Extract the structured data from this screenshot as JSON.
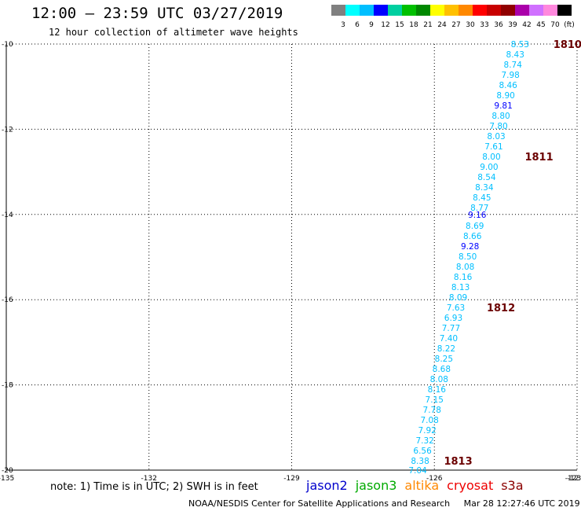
{
  "header": {
    "title": "12:00 – 23:59 UTC 03/27/2019",
    "subtitle": "12 hour collection of altimeter wave heights"
  },
  "colorbar": {
    "colors": [
      "#808080",
      "#00ffff",
      "#00bfff",
      "#0000ff",
      "#00cfa0",
      "#00c000",
      "#008800",
      "#ffff00",
      "#ffc000",
      "#ff8800",
      "#ff0000",
      "#c80000",
      "#900000",
      "#aa00aa",
      "#d070ff",
      "#ff88dd",
      "#000000"
    ],
    "labels": [
      "3",
      "6",
      "9",
      "12",
      "15",
      "18",
      "21",
      "24",
      "27",
      "30",
      "33",
      "36",
      "39",
      "42",
      "45",
      "70",
      "(ft)"
    ]
  },
  "chart_data": {
    "type": "scatter",
    "xlim": [
      -135,
      -123
    ],
    "ylim": [
      -20,
      -10
    ],
    "x_ticks": [
      "-135",
      "-132",
      "-129",
      "-126",
      "-123",
      "-12"
    ],
    "y_ticks": [
      "-10",
      "-12",
      "-14",
      "-16",
      "-18",
      "-20"
    ],
    "grid": true,
    "points": [
      {
        "lon": -124.2,
        "lat": -10.0,
        "v": "8.53",
        "c": "#00bfff"
      },
      {
        "lon": -124.3,
        "lat": -10.24,
        "v": "8.43",
        "c": "#00bfff"
      },
      {
        "lon": -124.35,
        "lat": -10.48,
        "v": "8.74",
        "c": "#00bfff"
      },
      {
        "lon": -124.4,
        "lat": -10.72,
        "v": "7.98",
        "c": "#00bfff"
      },
      {
        "lon": -124.45,
        "lat": -10.96,
        "v": "8.46",
        "c": "#00bfff"
      },
      {
        "lon": -124.5,
        "lat": -11.2,
        "v": "8.90",
        "c": "#00bfff"
      },
      {
        "lon": -124.55,
        "lat": -11.44,
        "v": "9.81",
        "c": "#0000ff"
      },
      {
        "lon": -124.6,
        "lat": -11.68,
        "v": "8.80",
        "c": "#00bfff"
      },
      {
        "lon": -124.65,
        "lat": -11.92,
        "v": "7.80",
        "c": "#00bfff"
      },
      {
        "lon": -124.7,
        "lat": -12.16,
        "v": "8.03",
        "c": "#00bfff"
      },
      {
        "lon": -124.75,
        "lat": -12.4,
        "v": "7.61",
        "c": "#00bfff"
      },
      {
        "lon": -124.8,
        "lat": -12.64,
        "v": "8.00",
        "c": "#00bfff"
      },
      {
        "lon": -124.85,
        "lat": -12.88,
        "v": "9.00",
        "c": "#00bfff"
      },
      {
        "lon": -124.9,
        "lat": -13.12,
        "v": "8.54",
        "c": "#00bfff"
      },
      {
        "lon": -124.95,
        "lat": -13.36,
        "v": "8.34",
        "c": "#00bfff"
      },
      {
        "lon": -125.0,
        "lat": -13.6,
        "v": "8.45",
        "c": "#00bfff"
      },
      {
        "lon": -125.05,
        "lat": -13.84,
        "v": "8.77",
        "c": "#00bfff"
      },
      {
        "lon": -125.1,
        "lat": -14.0,
        "v": "9.16",
        "c": "#0000ff"
      },
      {
        "lon": -125.15,
        "lat": -14.26,
        "v": "8.69",
        "c": "#00bfff"
      },
      {
        "lon": -125.2,
        "lat": -14.5,
        "v": "8.66",
        "c": "#00bfff"
      },
      {
        "lon": -125.25,
        "lat": -14.74,
        "v": "9.28",
        "c": "#0000ff"
      },
      {
        "lon": -125.3,
        "lat": -14.98,
        "v": "8.50",
        "c": "#00bfff"
      },
      {
        "lon": -125.35,
        "lat": -15.22,
        "v": "8.08",
        "c": "#00bfff"
      },
      {
        "lon": -125.4,
        "lat": -15.46,
        "v": "8.16",
        "c": "#00bfff"
      },
      {
        "lon": -125.45,
        "lat": -15.7,
        "v": "8.13",
        "c": "#00bfff"
      },
      {
        "lon": -125.5,
        "lat": -15.94,
        "v": "8.09",
        "c": "#00bfff"
      },
      {
        "lon": -125.55,
        "lat": -16.18,
        "v": "7.63",
        "c": "#00bfff"
      },
      {
        "lon": -125.6,
        "lat": -16.42,
        "v": "6.93",
        "c": "#00bfff"
      },
      {
        "lon": -125.65,
        "lat": -16.66,
        "v": "7.77",
        "c": "#00bfff"
      },
      {
        "lon": -125.7,
        "lat": -16.9,
        "v": "7.40",
        "c": "#00bfff"
      },
      {
        "lon": -125.75,
        "lat": -17.14,
        "v": "8.22",
        "c": "#00bfff"
      },
      {
        "lon": -125.8,
        "lat": -17.38,
        "v": "8.25",
        "c": "#00bfff"
      },
      {
        "lon": -125.85,
        "lat": -17.62,
        "v": "8.68",
        "c": "#00bfff"
      },
      {
        "lon": -125.9,
        "lat": -17.86,
        "v": "8.08",
        "c": "#00bfff"
      },
      {
        "lon": -125.95,
        "lat": -18.1,
        "v": "8.16",
        "c": "#00bfff"
      },
      {
        "lon": -126.0,
        "lat": -18.34,
        "v": "7.15",
        "c": "#00bfff"
      },
      {
        "lon": -126.05,
        "lat": -18.58,
        "v": "7.78",
        "c": "#00bfff"
      },
      {
        "lon": -126.1,
        "lat": -18.82,
        "v": "7.08",
        "c": "#00bfff"
      },
      {
        "lon": -126.15,
        "lat": -19.06,
        "v": "7.92",
        "c": "#00bfff"
      },
      {
        "lon": -126.2,
        "lat": -19.3,
        "v": "7.32",
        "c": "#00bfff"
      },
      {
        "lon": -126.25,
        "lat": -19.54,
        "v": "6.56",
        "c": "#00bfff"
      },
      {
        "lon": -126.3,
        "lat": -19.78,
        "v": "8.38",
        "c": "#00bfff"
      },
      {
        "lon": -126.35,
        "lat": -20.0,
        "v": "7.04",
        "c": "#00bfff"
      }
    ],
    "pass_labels": [
      {
        "lon": -123.2,
        "lat": -10.0,
        "text": "1810"
      },
      {
        "lon": -123.8,
        "lat": -12.64,
        "text": "1811"
      },
      {
        "lon": -124.6,
        "lat": -16.18,
        "text": "1812"
      },
      {
        "lon": -125.5,
        "lat": -19.78,
        "text": "1813"
      }
    ]
  },
  "note": "note: 1) Time is in UTC; 2) SWH is in feet",
  "satellites": [
    {
      "name": "jason2",
      "color": "#0000cc"
    },
    {
      "name": "jason3",
      "color": "#00aa00"
    },
    {
      "name": "altika",
      "color": "#ff8800"
    },
    {
      "name": "cryosat",
      "color": "#ee0000"
    },
    {
      "name": "s3a",
      "color": "#8b0000"
    }
  ],
  "footer": "NOAA/NESDIS Center for Satellite Applications and Research     Mar 28 12:27:46 UTC 2019"
}
